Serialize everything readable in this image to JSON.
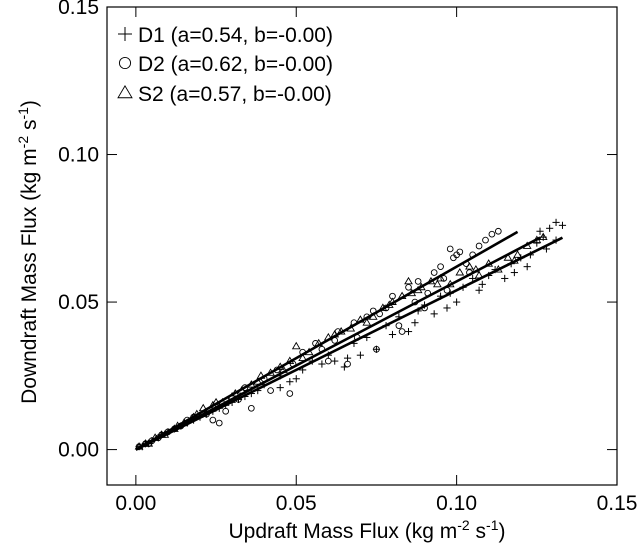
{
  "chart_data": {
    "type": "scatter",
    "title": "",
    "xlabel": {
      "text": "Updraft Mass Flux (kg m",
      "sup1": "-2",
      "mid": " s",
      "sup2": "-1",
      "end": ")"
    },
    "ylabel": {
      "text": "Downdraft Mass Flux (kg m",
      "sup1": "-2",
      "mid": " s",
      "sup2": "-1",
      "end": ")"
    },
    "xlim": [
      -0.009,
      0.15
    ],
    "ylim": [
      -0.012,
      0.15
    ],
    "xticks": [
      0.0,
      0.05,
      0.1,
      0.15
    ],
    "yticks": [
      0.0,
      0.05,
      0.1,
      0.15
    ],
    "xtick_labels": [
      "0.00",
      "0.05",
      "0.10",
      "0.15"
    ],
    "ytick_labels": [
      "0.00",
      "0.05",
      "0.10",
      "0.15"
    ],
    "grid": false,
    "legend_position": "top-left",
    "series": [
      {
        "name": "D1 (a=0.54, b=-0.00)",
        "marker": "plus",
        "fit": {
          "a": 0.54,
          "b": 0.0,
          "x_range": [
            0.0,
            0.133
          ]
        },
        "points": [
          [
            0.001,
            0.001
          ],
          [
            0.003,
            0.002
          ],
          [
            0.005,
            0.003
          ],
          [
            0.008,
            0.005
          ],
          [
            0.012,
            0.007
          ],
          [
            0.016,
            0.009
          ],
          [
            0.02,
            0.011
          ],
          [
            0.024,
            0.013
          ],
          [
            0.028,
            0.015
          ],
          [
            0.032,
            0.017
          ],
          [
            0.036,
            0.019
          ],
          [
            0.04,
            0.022
          ],
          [
            0.045,
            0.025
          ],
          [
            0.048,
            0.023
          ],
          [
            0.052,
            0.027
          ],
          [
            0.055,
            0.03
          ],
          [
            0.06,
            0.032
          ],
          [
            0.065,
            0.028
          ],
          [
            0.068,
            0.036
          ],
          [
            0.072,
            0.038
          ],
          [
            0.075,
            0.034
          ],
          [
            0.078,
            0.042
          ],
          [
            0.082,
            0.045
          ],
          [
            0.085,
            0.04
          ],
          [
            0.088,
            0.047
          ],
          [
            0.09,
            0.049
          ],
          [
            0.093,
            0.046
          ],
          [
            0.095,
            0.052
          ],
          [
            0.098,
            0.053
          ],
          [
            0.1,
            0.05
          ],
          [
            0.102,
            0.055
          ],
          [
            0.105,
            0.058
          ],
          [
            0.107,
            0.054
          ],
          [
            0.11,
            0.059
          ],
          [
            0.112,
            0.061
          ],
          [
            0.115,
            0.058
          ],
          [
            0.117,
            0.063
          ],
          [
            0.12,
            0.065
          ],
          [
            0.122,
            0.062
          ],
          [
            0.125,
            0.07
          ],
          [
            0.127,
            0.072
          ],
          [
            0.129,
            0.075
          ],
          [
            0.131,
            0.077
          ],
          [
            0.133,
            0.076
          ],
          [
            0.131,
            0.071
          ],
          [
            0.128,
            0.068
          ],
          [
            0.07,
            0.032
          ],
          [
            0.062,
            0.03
          ],
          [
            0.058,
            0.029
          ],
          [
            0.045,
            0.021
          ],
          [
            0.03,
            0.016
          ],
          [
            0.022,
            0.012
          ],
          [
            0.018,
            0.01
          ],
          [
            0.014,
            0.008
          ],
          [
            0.01,
            0.006
          ],
          [
            0.007,
            0.004
          ],
          [
            0.004,
            0.002
          ],
          [
            0.002,
            0.001
          ],
          [
            0.087,
            0.043
          ],
          [
            0.097,
            0.048
          ],
          [
            0.108,
            0.056
          ],
          [
            0.118,
            0.06
          ],
          [
            0.123,
            0.066
          ],
          [
            0.126,
            0.074
          ],
          [
            0.08,
            0.039
          ],
          [
            0.066,
            0.031
          ],
          [
            0.05,
            0.024
          ],
          [
            0.038,
            0.02
          ],
          [
            0.034,
            0.018
          ],
          [
            0.026,
            0.014
          ]
        ]
      },
      {
        "name": "D2 (a=0.62, b=-0.00)",
        "marker": "circle",
        "fit": {
          "a": 0.62,
          "b": 0.0,
          "x_range": [
            0.0,
            0.119
          ]
        },
        "points": [
          [
            0.001,
            0.001
          ],
          [
            0.004,
            0.002
          ],
          [
            0.007,
            0.004
          ],
          [
            0.01,
            0.006
          ],
          [
            0.014,
            0.008
          ],
          [
            0.018,
            0.011
          ],
          [
            0.022,
            0.012
          ],
          [
            0.026,
            0.009
          ],
          [
            0.028,
            0.013
          ],
          [
            0.032,
            0.017
          ],
          [
            0.036,
            0.014
          ],
          [
            0.04,
            0.024
          ],
          [
            0.044,
            0.027
          ],
          [
            0.048,
            0.019
          ],
          [
            0.052,
            0.033
          ],
          [
            0.056,
            0.036
          ],
          [
            0.06,
            0.03
          ],
          [
            0.063,
            0.04
          ],
          [
            0.066,
            0.029
          ],
          [
            0.069,
            0.038
          ],
          [
            0.072,
            0.045
          ],
          [
            0.075,
            0.034
          ],
          [
            0.078,
            0.048
          ],
          [
            0.08,
            0.052
          ],
          [
            0.083,
            0.04
          ],
          [
            0.085,
            0.055
          ],
          [
            0.088,
            0.057
          ],
          [
            0.09,
            0.048
          ],
          [
            0.093,
            0.06
          ],
          [
            0.095,
            0.062
          ],
          [
            0.097,
            0.054
          ],
          [
            0.099,
            0.065
          ],
          [
            0.101,
            0.067
          ],
          [
            0.103,
            0.063
          ],
          [
            0.105,
            0.066
          ],
          [
            0.107,
            0.069
          ],
          [
            0.109,
            0.071
          ],
          [
            0.111,
            0.073
          ],
          [
            0.113,
            0.074
          ],
          [
            0.1,
            0.066
          ],
          [
            0.098,
            0.068
          ],
          [
            0.087,
            0.05
          ],
          [
            0.082,
            0.042
          ],
          [
            0.076,
            0.046
          ],
          [
            0.068,
            0.043
          ],
          [
            0.058,
            0.034
          ],
          [
            0.049,
            0.029
          ],
          [
            0.042,
            0.02
          ],
          [
            0.034,
            0.021
          ],
          [
            0.024,
            0.01
          ],
          [
            0.016,
            0.01
          ],
          [
            0.012,
            0.007
          ],
          [
            0.008,
            0.005
          ],
          [
            0.005,
            0.003
          ],
          [
            0.003,
            0.002
          ],
          [
            0.091,
            0.053
          ],
          [
            0.096,
            0.058
          ],
          [
            0.104,
            0.06
          ],
          [
            0.074,
            0.047
          ],
          [
            0.062,
            0.037
          ]
        ]
      },
      {
        "name": "S2 (a=0.57, b=-0.00)",
        "marker": "triangle",
        "fit": {
          "a": 0.57,
          "b": 0.0,
          "x_range": [
            0.0,
            0.126
          ]
        },
        "points": [
          [
            0.001,
            0.001
          ],
          [
            0.003,
            0.002
          ],
          [
            0.006,
            0.004
          ],
          [
            0.009,
            0.005
          ],
          [
            0.012,
            0.007
          ],
          [
            0.015,
            0.009
          ],
          [
            0.018,
            0.011
          ],
          [
            0.021,
            0.014
          ],
          [
            0.024,
            0.015
          ],
          [
            0.027,
            0.016
          ],
          [
            0.03,
            0.018
          ],
          [
            0.033,
            0.02
          ],
          [
            0.036,
            0.022
          ],
          [
            0.039,
            0.025
          ],
          [
            0.042,
            0.026
          ],
          [
            0.045,
            0.028
          ],
          [
            0.048,
            0.03
          ],
          [
            0.05,
            0.035
          ],
          [
            0.054,
            0.033
          ],
          [
            0.057,
            0.036
          ],
          [
            0.06,
            0.038
          ],
          [
            0.064,
            0.04
          ],
          [
            0.067,
            0.041
          ],
          [
            0.07,
            0.044
          ],
          [
            0.074,
            0.045
          ],
          [
            0.077,
            0.048
          ],
          [
            0.08,
            0.05
          ],
          [
            0.083,
            0.052
          ],
          [
            0.086,
            0.053
          ],
          [
            0.089,
            0.055
          ],
          [
            0.092,
            0.057
          ],
          [
            0.095,
            0.058
          ],
          [
            0.098,
            0.056
          ],
          [
            0.101,
            0.06
          ],
          [
            0.104,
            0.062
          ],
          [
            0.107,
            0.059
          ],
          [
            0.11,
            0.063
          ],
          [
            0.113,
            0.061
          ],
          [
            0.116,
            0.065
          ],
          [
            0.119,
            0.066
          ],
          [
            0.122,
            0.069
          ],
          [
            0.125,
            0.071
          ],
          [
            0.127,
            0.072
          ],
          [
            0.118,
            0.064
          ],
          [
            0.106,
            0.061
          ],
          [
            0.094,
            0.056
          ],
          [
            0.085,
            0.057
          ],
          [
            0.072,
            0.043
          ],
          [
            0.062,
            0.039
          ],
          [
            0.052,
            0.031
          ],
          [
            0.046,
            0.027
          ],
          [
            0.038,
            0.023
          ],
          [
            0.031,
            0.019
          ],
          [
            0.025,
            0.016
          ],
          [
            0.019,
            0.012
          ],
          [
            0.013,
            0.008
          ],
          [
            0.008,
            0.005
          ],
          [
            0.004,
            0.002
          ],
          [
            0.079,
            0.049
          ],
          [
            0.088,
            0.054
          ]
        ]
      }
    ]
  }
}
